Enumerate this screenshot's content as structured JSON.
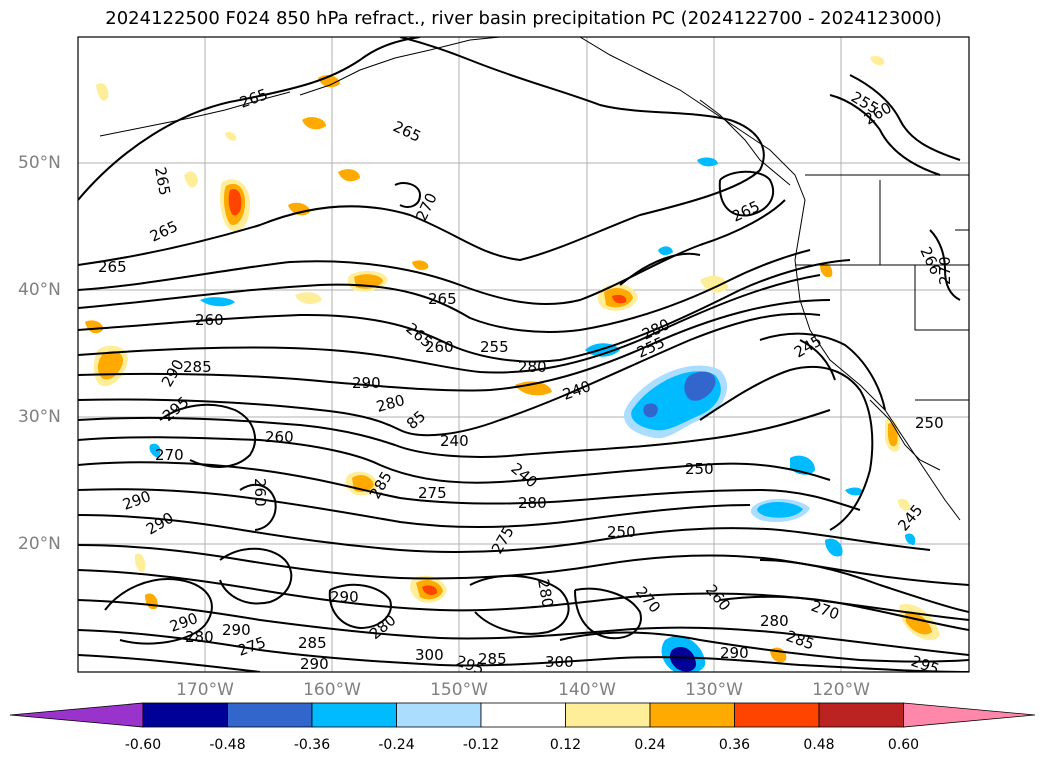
{
  "title": "2024122500 F024 850 hPa refract., river basin precipitation PC (2024122700 - 2024123000)",
  "lat_labels": [
    "50°N",
    "40°N",
    "30°N",
    "20°N"
  ],
  "lon_labels": [
    "170°W",
    "160°W",
    "150°W",
    "140°W",
    "130°W",
    "120°W"
  ],
  "colorbar": {
    "ticks": [
      "-0.60",
      "-0.48",
      "-0.36",
      "-0.24",
      "-0.12",
      "0.12",
      "0.24",
      "0.36",
      "0.48",
      "0.60"
    ],
    "colors": [
      "#9933cc",
      "#000099",
      "#3366cc",
      "#00bbff",
      "#aaddff",
      "#ffffff",
      "#ffee99",
      "#ffaa00",
      "#ff4400",
      "#bb2222",
      "#ff88aa"
    ]
  },
  "contour_labels": [
    "265",
    "265",
    "265",
    "265",
    "265",
    "265",
    "270",
    "255",
    "260",
    "265",
    "266",
    "270",
    "260",
    "265",
    "260",
    "255",
    "280",
    "280",
    "255",
    "245",
    "285",
    "290",
    "290",
    "280",
    "240",
    "295",
    "85",
    "240",
    "250",
    "270",
    "260",
    "260",
    "275",
    "280",
    "240",
    "285",
    "250",
    "290",
    "290",
    "275",
    "250",
    "245",
    "280",
    "290",
    "270",
    "260",
    "280",
    "270",
    "290",
    "280",
    "285",
    "290",
    "275",
    "300",
    "295",
    "285",
    "300",
    "290",
    "280",
    "285",
    "295",
    "290"
  ]
}
